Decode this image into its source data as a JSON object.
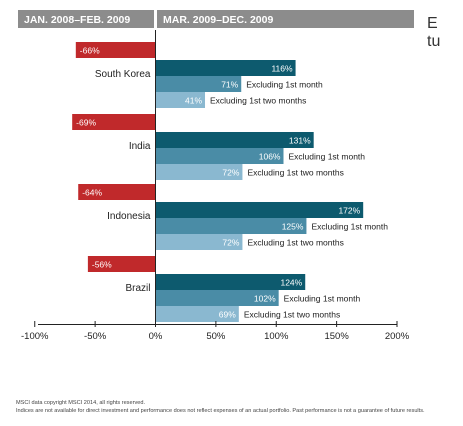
{
  "header": {
    "left_title": "JAN. 2008–FEB. 2009",
    "right_title": "MAR. 2009–DEC. 2009"
  },
  "side_text": {
    "line1": "E",
    "line2": "tu"
  },
  "footnotes": {
    "line1": "MSCI data copyright MSCI 2014, all rights reserved.",
    "line2": "Indices are not available for direct investment and performance does not reflect expenses of an actual portfolio. Past performance is not a guarantee of future results."
  },
  "chart_data": {
    "type": "bar",
    "orientation": "horizontal",
    "xlim": [
      -100,
      200
    ],
    "ticks": [
      -100,
      -50,
      0,
      50,
      100,
      150,
      200
    ],
    "tick_labels": [
      "-100%",
      "-50%",
      "0%",
      "50%",
      "100%",
      "150%",
      "200%"
    ],
    "colors": {
      "negative": "#c0292b",
      "full_period": "#0d5a6e",
      "excl_1st_month": "#4a8ca6",
      "excl_1st_two_months": "#8ab8d0",
      "header": "#8c8c8c"
    },
    "categories": [
      {
        "name": "South Korea",
        "decline": -66,
        "decline_label": "-66%",
        "bars": [
          {
            "value": 116,
            "label": "116%",
            "annotation": ""
          },
          {
            "value": 71,
            "label": "71%",
            "annotation": "Excluding 1st month"
          },
          {
            "value": 41,
            "label": "41%",
            "annotation": "Excluding 1st two months"
          }
        ]
      },
      {
        "name": "India",
        "decline": -69,
        "decline_label": "-69%",
        "bars": [
          {
            "value": 131,
            "label": "131%",
            "annotation": ""
          },
          {
            "value": 106,
            "label": "106%",
            "annotation": "Excluding 1st month"
          },
          {
            "value": 72,
            "label": "72%",
            "annotation": "Excluding 1st two months"
          }
        ]
      },
      {
        "name": "Indonesia",
        "decline": -64,
        "decline_label": "-64%",
        "bars": [
          {
            "value": 172,
            "label": "172%",
            "annotation": ""
          },
          {
            "value": 125,
            "label": "125%",
            "annotation": "Excluding 1st month"
          },
          {
            "value": 72,
            "label": "72%",
            "annotation": "Excluding 1st two months"
          }
        ]
      },
      {
        "name": "Brazil",
        "decline": -56,
        "decline_label": "-56%",
        "bars": [
          {
            "value": 124,
            "label": "124%",
            "annotation": ""
          },
          {
            "value": 102,
            "label": "102%",
            "annotation": "Excluding 1st month"
          },
          {
            "value": 69,
            "label": "69%",
            "annotation": "Excluding 1st two months"
          }
        ]
      }
    ]
  }
}
